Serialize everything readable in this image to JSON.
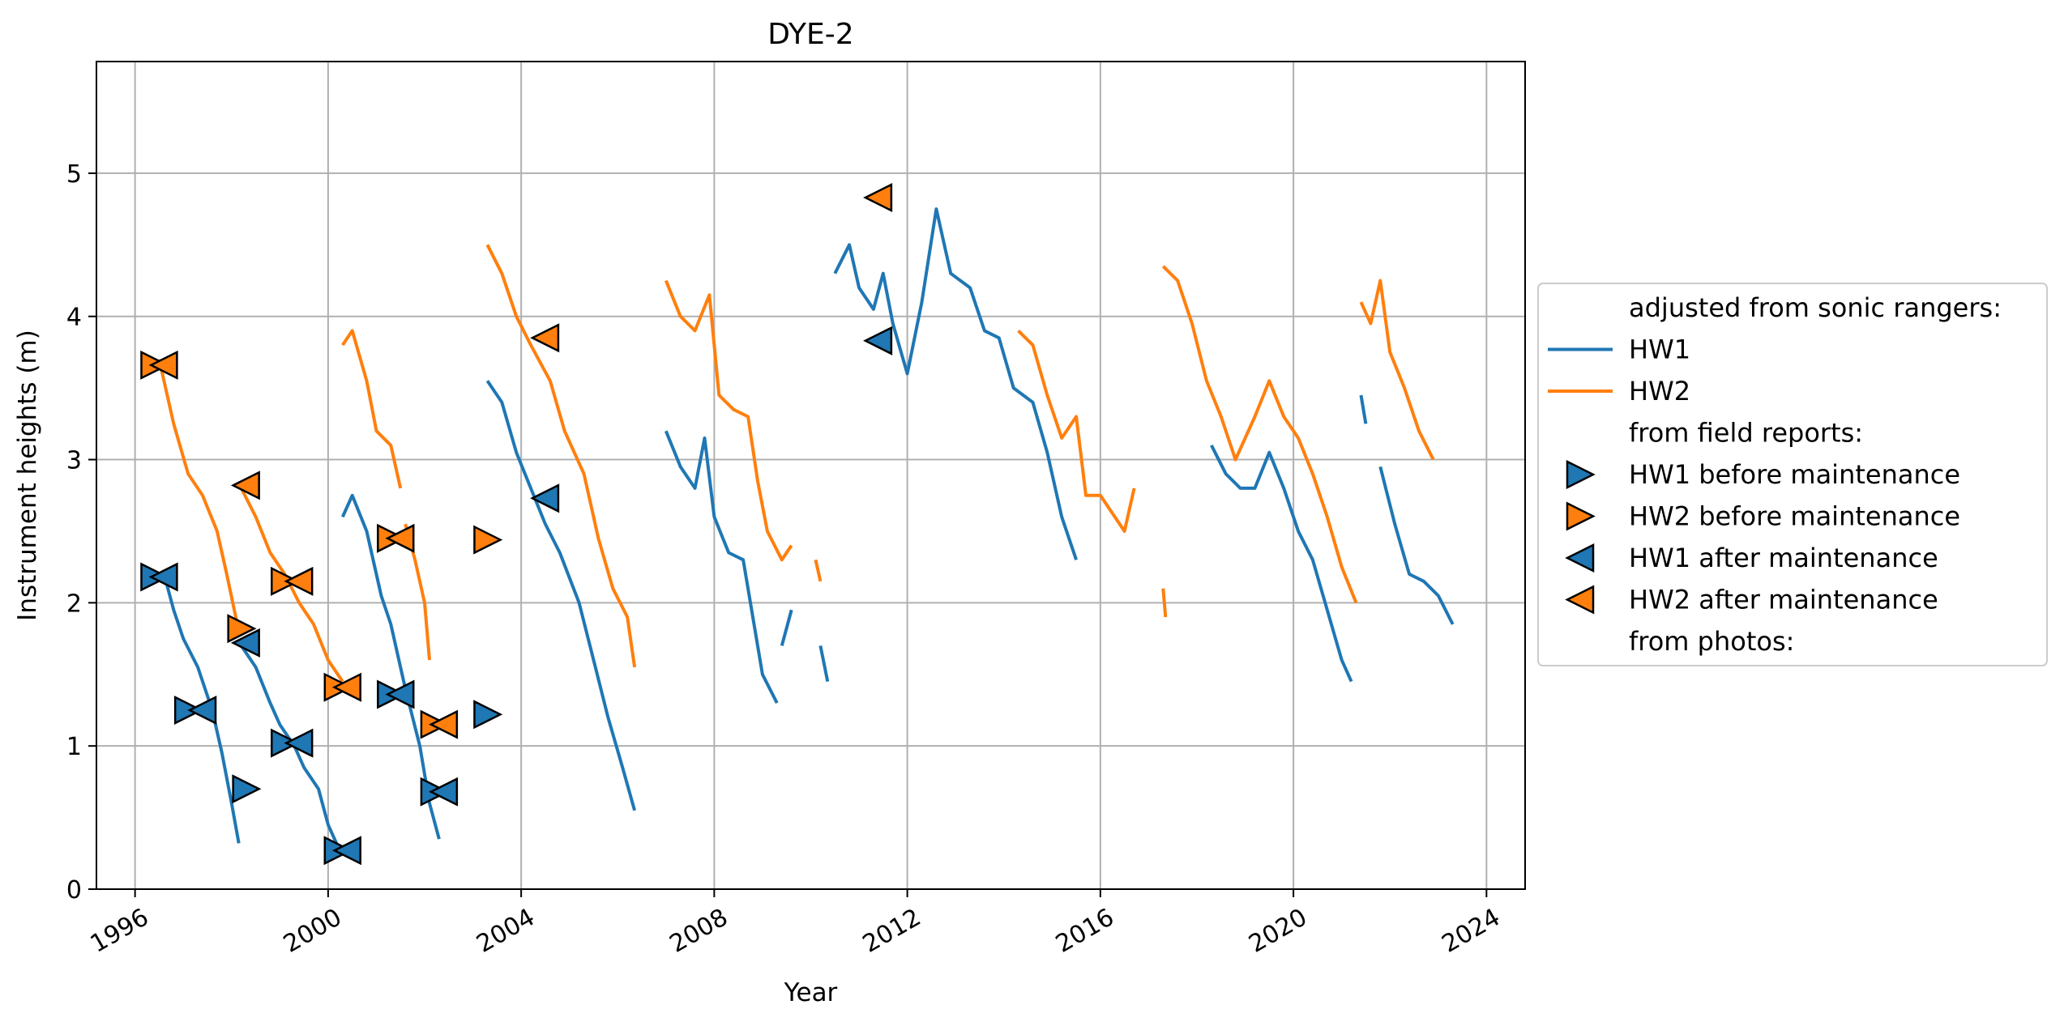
{
  "chart_data": {
    "type": "line",
    "title": "DYE-2",
    "xlabel": "Year",
    "ylabel": "Instrument heights (m)",
    "xlim": [
      1995.2,
      2024.8
    ],
    "ylim": [
      0,
      5.78
    ],
    "x_ticks": [
      1996,
      2000,
      2004,
      2008,
      2012,
      2016,
      2020,
      2024
    ],
    "x_tick_labels": [
      "1996",
      "2000",
      "2004",
      "2008",
      "2012",
      "2016",
      "2020",
      "2024"
    ],
    "y_ticks": [
      0,
      1,
      2,
      3,
      4,
      5
    ],
    "y_tick_labels": [
      "0",
      "1",
      "2",
      "3",
      "4",
      "5"
    ],
    "grid": true,
    "legend_position": "right-outside",
    "legend_headers": {
      "sonic": "adjusted from sonic rangers:",
      "field": "from field reports:",
      "photos": "from photos:"
    },
    "colors": {
      "HW1": "#1f77b4",
      "HW2": "#ff7f0e"
    },
    "series": [
      {
        "name": "HW1",
        "segments": [
          [
            [
              1996.6,
              2.2
            ],
            [
              1996.8,
              1.95
            ],
            [
              1997.0,
              1.75
            ],
            [
              1997.3,
              1.55
            ],
            [
              1997.6,
              1.25
            ],
            [
              1997.8,
              0.95
            ],
            [
              1998.0,
              0.6
            ],
            [
              1998.15,
              0.32
            ]
          ],
          [
            [
              1998.2,
              1.7
            ],
            [
              1998.5,
              1.55
            ],
            [
              1998.8,
              1.3
            ],
            [
              1999.0,
              1.15
            ],
            [
              1999.3,
              1.0
            ],
            [
              1999.5,
              0.85
            ],
            [
              1999.8,
              0.7
            ],
            [
              2000.0,
              0.45
            ],
            [
              2000.2,
              0.3
            ]
          ],
          [
            [
              2000.3,
              2.6
            ],
            [
              2000.5,
              2.75
            ],
            [
              2000.8,
              2.5
            ],
            [
              2001.1,
              2.05
            ],
            [
              2001.3,
              1.85
            ],
            [
              2001.6,
              1.4
            ],
            [
              2001.9,
              1.0
            ],
            [
              2002.1,
              0.6
            ],
            [
              2002.3,
              0.35
            ]
          ],
          [
            [
              2003.3,
              3.55
            ],
            [
              2003.6,
              3.4
            ],
            [
              2003.9,
              3.05
            ],
            [
              2004.2,
              2.8
            ],
            [
              2004.5,
              2.55
            ],
            [
              2004.8,
              2.35
            ],
            [
              2005.2,
              2.0
            ],
            [
              2005.5,
              1.6
            ],
            [
              2005.8,
              1.2
            ],
            [
              2006.1,
              0.85
            ],
            [
              2006.35,
              0.55
            ]
          ],
          [
            [
              2007.0,
              3.2
            ],
            [
              2007.3,
              2.95
            ],
            [
              2007.6,
              2.8
            ],
            [
              2007.8,
              3.15
            ],
            [
              2008.0,
              2.6
            ],
            [
              2008.3,
              2.35
            ],
            [
              2008.6,
              2.3
            ],
            [
              2008.8,
              1.9
            ],
            [
              2009.0,
              1.5
            ],
            [
              2009.3,
              1.3
            ]
          ],
          [
            [
              2009.4,
              1.7
            ],
            [
              2009.6,
              1.95
            ]
          ],
          [
            [
              2010.2,
              1.7
            ],
            [
              2010.35,
              1.45
            ]
          ],
          [
            [
              2010.5,
              4.3
            ],
            [
              2010.8,
              4.5
            ],
            [
              2011.0,
              4.2
            ],
            [
              2011.3,
              4.05
            ],
            [
              2011.5,
              4.3
            ],
            [
              2011.7,
              3.95
            ],
            [
              2012.0,
              3.6
            ],
            [
              2012.3,
              4.1
            ],
            [
              2012.6,
              4.75
            ],
            [
              2012.9,
              4.3
            ],
            [
              2013.3,
              4.2
            ],
            [
              2013.6,
              3.9
            ],
            [
              2013.9,
              3.85
            ],
            [
              2014.2,
              3.5
            ],
            [
              2014.6,
              3.4
            ],
            [
              2014.9,
              3.05
            ],
            [
              2015.2,
              2.6
            ],
            [
              2015.5,
              2.3
            ]
          ],
          [
            [
              2018.3,
              3.1
            ],
            [
              2018.6,
              2.9
            ],
            [
              2018.9,
              2.8
            ],
            [
              2019.2,
              2.8
            ],
            [
              2019.5,
              3.05
            ],
            [
              2019.8,
              2.8
            ],
            [
              2020.1,
              2.5
            ],
            [
              2020.4,
              2.3
            ],
            [
              2020.7,
              1.95
            ],
            [
              2021.0,
              1.6
            ],
            [
              2021.2,
              1.45
            ]
          ],
          [
            [
              2021.4,
              3.45
            ],
            [
              2021.5,
              3.25
            ]
          ],
          [
            [
              2021.8,
              2.95
            ],
            [
              2022.1,
              2.55
            ],
            [
              2022.4,
              2.2
            ],
            [
              2022.7,
              2.15
            ],
            [
              2023.0,
              2.05
            ],
            [
              2023.3,
              1.85
            ]
          ]
        ]
      },
      {
        "name": "HW2",
        "segments": [
          [
            [
              1996.5,
              3.7
            ],
            [
              1996.8,
              3.25
            ],
            [
              1997.1,
              2.9
            ],
            [
              1997.4,
              2.75
            ],
            [
              1997.7,
              2.5
            ],
            [
              1997.9,
              2.2
            ],
            [
              1998.15,
              1.8
            ]
          ],
          [
            [
              1998.2,
              2.8
            ],
            [
              1998.5,
              2.6
            ],
            [
              1998.8,
              2.35
            ],
            [
              1999.1,
              2.2
            ],
            [
              1999.4,
              2.0
            ],
            [
              1999.7,
              1.85
            ],
            [
              2000.0,
              1.6
            ],
            [
              2000.3,
              1.45
            ]
          ],
          [
            [
              2000.3,
              3.8
            ],
            [
              2000.5,
              3.9
            ],
            [
              2000.8,
              3.55
            ],
            [
              2001.0,
              3.2
            ],
            [
              2001.3,
              3.1
            ],
            [
              2001.5,
              2.8
            ]
          ],
          [
            [
              2001.6,
              2.55
            ],
            [
              2001.8,
              2.3
            ],
            [
              2002.0,
              2.0
            ],
            [
              2002.1,
              1.6
            ]
          ],
          [
            [
              2003.3,
              4.5
            ],
            [
              2003.6,
              4.3
            ],
            [
              2003.9,
              4.0
            ],
            [
              2004.2,
              3.8
            ],
            [
              2004.6,
              3.55
            ],
            [
              2004.9,
              3.2
            ],
            [
              2005.3,
              2.9
            ],
            [
              2005.6,
              2.45
            ],
            [
              2005.9,
              2.1
            ],
            [
              2006.2,
              1.9
            ],
            [
              2006.35,
              1.55
            ]
          ],
          [
            [
              2007.0,
              4.25
            ],
            [
              2007.3,
              4.0
            ],
            [
              2007.6,
              3.9
            ],
            [
              2007.9,
              4.15
            ],
            [
              2008.1,
              3.45
            ],
            [
              2008.4,
              3.35
            ],
            [
              2008.7,
              3.3
            ],
            [
              2008.9,
              2.85
            ],
            [
              2009.1,
              2.5
            ],
            [
              2009.4,
              2.3
            ],
            [
              2009.6,
              2.4
            ]
          ],
          [
            [
              2010.1,
              2.3
            ],
            [
              2010.2,
              2.15
            ]
          ],
          [
            [
              2014.3,
              3.9
            ],
            [
              2014.6,
              3.8
            ],
            [
              2014.9,
              3.45
            ],
            [
              2015.2,
              3.15
            ],
            [
              2015.5,
              3.3
            ],
            [
              2015.7,
              2.75
            ],
            [
              2016.0,
              2.75
            ],
            [
              2016.3,
              2.6
            ],
            [
              2016.5,
              2.5
            ],
            [
              2016.7,
              2.8
            ]
          ],
          [
            [
              2017.3,
              2.1
            ],
            [
              2017.35,
              1.9
            ]
          ],
          [
            [
              2017.3,
              4.35
            ],
            [
              2017.6,
              4.25
            ],
            [
              2017.9,
              3.95
            ],
            [
              2018.2,
              3.55
            ],
            [
              2018.5,
              3.3
            ],
            [
              2018.8,
              3.0
            ],
            [
              2019.2,
              3.3
            ],
            [
              2019.5,
              3.55
            ],
            [
              2019.8,
              3.3
            ],
            [
              2020.1,
              3.15
            ],
            [
              2020.4,
              2.9
            ],
            [
              2020.7,
              2.6
            ],
            [
              2021.0,
              2.25
            ],
            [
              2021.3,
              2.0
            ]
          ],
          [
            [
              2021.4,
              4.1
            ],
            [
              2021.6,
              3.95
            ],
            [
              2021.8,
              4.25
            ],
            [
              2022.0,
              3.75
            ],
            [
              2022.3,
              3.5
            ],
            [
              2022.6,
              3.2
            ],
            [
              2022.9,
              3.0
            ]
          ]
        ]
      }
    ],
    "markers": [
      {
        "name": "HW1 before maintenance",
        "marker": "triangle-right",
        "points": [
          [
            1996.4,
            2.18
          ],
          [
            1997.1,
            1.25
          ],
          [
            1998.3,
            0.7
          ],
          [
            1999.1,
            1.02
          ],
          [
            2000.2,
            0.27
          ],
          [
            2001.3,
            1.36
          ],
          [
            2002.2,
            0.68
          ],
          [
            2003.3,
            1.22
          ]
        ]
      },
      {
        "name": "HW2 before maintenance",
        "marker": "triangle-right",
        "points": [
          [
            1996.4,
            3.66
          ],
          [
            1998.2,
            1.82
          ],
          [
            1999.1,
            2.15
          ],
          [
            2000.2,
            1.41
          ],
          [
            2001.3,
            2.45
          ],
          [
            2002.2,
            1.15
          ],
          [
            2003.3,
            2.44
          ]
        ]
      },
      {
        "name": "HW1 after maintenance",
        "marker": "triangle-left",
        "points": [
          [
            1996.6,
            2.18
          ],
          [
            1997.4,
            1.25
          ],
          [
            1998.3,
            1.72
          ],
          [
            1999.4,
            1.02
          ],
          [
            2000.4,
            0.27
          ],
          [
            2001.5,
            1.36
          ],
          [
            2002.4,
            0.68
          ],
          [
            2004.5,
            2.73
          ],
          [
            2011.4,
            3.83
          ]
        ]
      },
      {
        "name": "HW2 after maintenance",
        "marker": "triangle-left",
        "points": [
          [
            1996.6,
            3.66
          ],
          [
            1998.3,
            2.82
          ],
          [
            1999.4,
            2.15
          ],
          [
            2000.4,
            1.41
          ],
          [
            2001.5,
            2.45
          ],
          [
            2002.4,
            1.15
          ],
          [
            2004.5,
            3.85
          ],
          [
            2011.4,
            4.83
          ]
        ]
      }
    ]
  }
}
